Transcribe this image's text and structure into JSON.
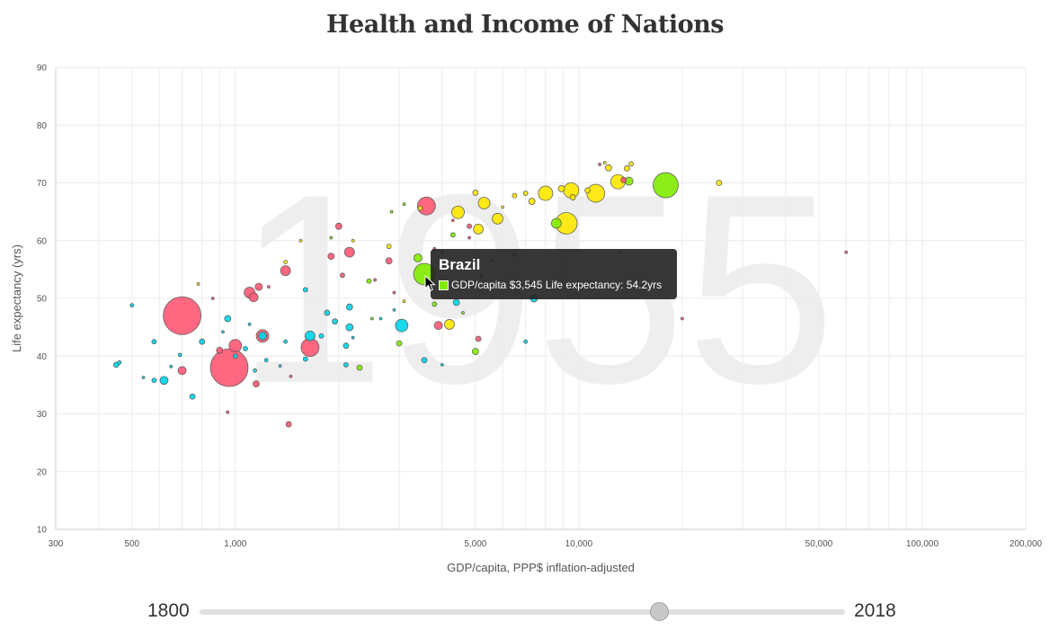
{
  "page": {
    "title": "Health and Income of Nations"
  },
  "chart_data": {
    "type": "scatter",
    "title": "Health and Income of Nations",
    "xlabel": "GDP/capita, PPP$ inflation-adjusted",
    "ylabel": "Life expectancy (yrs)",
    "xscale": "log",
    "xlim": [
      300,
      200000
    ],
    "ylim": [
      10,
      90
    ],
    "xticks": [
      300,
      400,
      500,
      600,
      700,
      800,
      900,
      1000,
      2000,
      3000,
      4000,
      5000,
      6000,
      7000,
      8000,
      9000,
      10000,
      20000,
      30000,
      40000,
      50000,
      60000,
      70000,
      80000,
      90000,
      100000,
      200000
    ],
    "xtick_labels": [
      {
        "value": 300,
        "label": "300"
      },
      {
        "value": 500,
        "label": "500"
      },
      {
        "value": 1000,
        "label": "1,000"
      },
      {
        "value": 5000,
        "label": "5,000"
      },
      {
        "value": 10000,
        "label": "10,000"
      },
      {
        "value": 50000,
        "label": "50,000"
      },
      {
        "value": 100000,
        "label": "100,000"
      },
      {
        "value": 200000,
        "label": "200,000"
      }
    ],
    "yticks": [
      10,
      20,
      30,
      40,
      50,
      60,
      70,
      80,
      90
    ],
    "grid": true,
    "year_watermark": "1955",
    "region_colors": {
      "africa": "#00d5e9",
      "asia": "#ff5872",
      "americas": "#7feb00",
      "europe": "#ffe700"
    },
    "points": [
      {
        "x": 700,
        "y": 47,
        "r": 21,
        "region": "asia"
      },
      {
        "x": 960,
        "y": 38,
        "r": 21,
        "region": "asia"
      },
      {
        "x": 3600,
        "y": 66,
        "r": 10,
        "region": "asia"
      },
      {
        "x": 1650,
        "y": 41.5,
        "r": 10,
        "region": "asia"
      },
      {
        "x": 1000,
        "y": 41.8,
        "r": 7,
        "region": "asia"
      },
      {
        "x": 1200,
        "y": 43.5,
        "r": 7,
        "region": "asia"
      },
      {
        "x": 1100,
        "y": 51,
        "r": 6,
        "region": "asia"
      },
      {
        "x": 1130,
        "y": 50.2,
        "r": 5,
        "region": "asia"
      },
      {
        "x": 1400,
        "y": 54.8,
        "r": 5.5,
        "region": "asia"
      },
      {
        "x": 2150,
        "y": 58,
        "r": 5.5,
        "region": "asia"
      },
      {
        "x": 700,
        "y": 37.5,
        "r": 4.5,
        "region": "asia"
      },
      {
        "x": 1170,
        "y": 52,
        "r": 4,
        "region": "asia"
      },
      {
        "x": 900,
        "y": 41,
        "r": 3.5,
        "region": "asia"
      },
      {
        "x": 1150,
        "y": 35.2,
        "r": 3.5,
        "region": "asia"
      },
      {
        "x": 2000,
        "y": 62.5,
        "r": 3.5,
        "region": "asia"
      },
      {
        "x": 3900,
        "y": 45.3,
        "r": 4.5,
        "region": "asia"
      },
      {
        "x": 1900,
        "y": 57.3,
        "r": 3.5,
        "region": "asia"
      },
      {
        "x": 2800,
        "y": 56.5,
        "r": 3.5,
        "region": "asia"
      },
      {
        "x": 2050,
        "y": 54,
        "r": 2.5,
        "region": "asia"
      },
      {
        "x": 1430,
        "y": 28.2,
        "r": 3,
        "region": "asia"
      },
      {
        "x": 5100,
        "y": 43,
        "r": 3,
        "region": "asia"
      },
      {
        "x": 13500,
        "y": 70.5,
        "r": 3,
        "region": "asia"
      },
      {
        "x": 4800,
        "y": 62.5,
        "r": 2.5,
        "region": "asia"
      },
      {
        "x": 3550,
        "y": 54.2,
        "r": 12,
        "region": "americas",
        "label": "Brazil",
        "tooltip_text": "GDP/capita $3,545 Life expectancy: 54.2yrs"
      },
      {
        "x": 17900,
        "y": 69.6,
        "r": 14,
        "region": "americas"
      },
      {
        "x": 8600,
        "y": 63,
        "r": 5.5,
        "region": "americas"
      },
      {
        "x": 3400,
        "y": 57,
        "r": 4.5,
        "region": "americas"
      },
      {
        "x": 14000,
        "y": 70.3,
        "r": 4.5,
        "region": "americas"
      },
      {
        "x": 5000,
        "y": 40.8,
        "r": 3.5,
        "region": "americas"
      },
      {
        "x": 2300,
        "y": 38,
        "r": 3,
        "region": "americas"
      },
      {
        "x": 3000,
        "y": 42.2,
        "r": 3,
        "region": "americas"
      },
      {
        "x": 3800,
        "y": 49,
        "r": 2.5,
        "region": "americas"
      },
      {
        "x": 2450,
        "y": 53,
        "r": 2.5,
        "region": "americas"
      },
      {
        "x": 4300,
        "y": 61,
        "r": 2.5,
        "region": "americas"
      },
      {
        "x": 9200,
        "y": 63,
        "r": 12,
        "region": "europe"
      },
      {
        "x": 11200,
        "y": 68.2,
        "r": 10,
        "region": "europe"
      },
      {
        "x": 9500,
        "y": 68.7,
        "r": 8.5,
        "region": "europe"
      },
      {
        "x": 13000,
        "y": 70.2,
        "r": 8,
        "region": "europe"
      },
      {
        "x": 8000,
        "y": 68.2,
        "r": 8,
        "region": "europe"
      },
      {
        "x": 4450,
        "y": 64.9,
        "r": 7,
        "region": "europe"
      },
      {
        "x": 5300,
        "y": 66.5,
        "r": 6.5,
        "region": "europe"
      },
      {
        "x": 5800,
        "y": 63.8,
        "r": 6,
        "region": "europe"
      },
      {
        "x": 5100,
        "y": 62,
        "r": 5.5,
        "region": "europe"
      },
      {
        "x": 4200,
        "y": 45.5,
        "r": 5.5,
        "region": "europe"
      },
      {
        "x": 12200,
        "y": 72.6,
        "r": 3.5,
        "region": "europe"
      },
      {
        "x": 13800,
        "y": 72.5,
        "r": 3,
        "region": "europe"
      },
      {
        "x": 14200,
        "y": 73.3,
        "r": 2.5,
        "region": "europe"
      },
      {
        "x": 7300,
        "y": 66.8,
        "r": 3.5,
        "region": "europe"
      },
      {
        "x": 8900,
        "y": 69,
        "r": 3.5,
        "region": "europe"
      },
      {
        "x": 9600,
        "y": 67.5,
        "r": 3,
        "region": "europe"
      },
      {
        "x": 10600,
        "y": 68.7,
        "r": 3,
        "region": "europe"
      },
      {
        "x": 5000,
        "y": 68.3,
        "r": 3,
        "region": "europe"
      },
      {
        "x": 6500,
        "y": 67.8,
        "r": 2.5,
        "region": "europe"
      },
      {
        "x": 7000,
        "y": 68.2,
        "r": 2.5,
        "region": "europe"
      },
      {
        "x": 25600,
        "y": 70,
        "r": 3,
        "region": "europe"
      },
      {
        "x": 2800,
        "y": 59,
        "r": 2.5,
        "region": "europe"
      },
      {
        "x": 3450,
        "y": 65.6,
        "r": 2.5,
        "region": "europe"
      },
      {
        "x": 1400,
        "y": 56.3,
        "r": 2,
        "region": "europe"
      },
      {
        "x": 3050,
        "y": 45.3,
        "r": 7,
        "region": "africa"
      },
      {
        "x": 1650,
        "y": 43.5,
        "r": 5.5,
        "region": "africa"
      },
      {
        "x": 620,
        "y": 35.8,
        "r": 4.5,
        "region": "africa"
      },
      {
        "x": 1200,
        "y": 43.5,
        "r": 4.5,
        "region": "africa"
      },
      {
        "x": 2150,
        "y": 45,
        "r": 4,
        "region": "africa"
      },
      {
        "x": 2150,
        "y": 48.5,
        "r": 3.5,
        "region": "africa"
      },
      {
        "x": 7400,
        "y": 50,
        "r": 4,
        "region": "africa"
      },
      {
        "x": 4400,
        "y": 49.3,
        "r": 3.5,
        "region": "africa"
      },
      {
        "x": 950,
        "y": 46.5,
        "r": 3.5,
        "region": "africa"
      },
      {
        "x": 1850,
        "y": 47.5,
        "r": 3,
        "region": "africa"
      },
      {
        "x": 1950,
        "y": 46,
        "r": 3,
        "region": "africa"
      },
      {
        "x": 2100,
        "y": 41.8,
        "r": 3,
        "region": "africa"
      },
      {
        "x": 3550,
        "y": 39.3,
        "r": 3,
        "region": "africa"
      },
      {
        "x": 450,
        "y": 38.5,
        "r": 3,
        "region": "africa"
      },
      {
        "x": 750,
        "y": 33,
        "r": 3,
        "region": "africa"
      },
      {
        "x": 800,
        "y": 42.5,
        "r": 3,
        "region": "africa"
      },
      {
        "x": 1600,
        "y": 51.5,
        "r": 2.5,
        "region": "africa"
      },
      {
        "x": 1780,
        "y": 43.5,
        "r": 2.5,
        "region": "africa"
      },
      {
        "x": 2100,
        "y": 38.5,
        "r": 2.5,
        "region": "africa"
      },
      {
        "x": 580,
        "y": 42.5,
        "r": 2.5,
        "region": "africa"
      },
      {
        "x": 580,
        "y": 35.8,
        "r": 2.5,
        "region": "africa"
      },
      {
        "x": 1000,
        "y": 40,
        "r": 2.5,
        "region": "africa"
      },
      {
        "x": 1070,
        "y": 41.3,
        "r": 2.5,
        "region": "africa"
      },
      {
        "x": 1600,
        "y": 39.5,
        "r": 2.5,
        "region": "africa"
      },
      {
        "x": 7000,
        "y": 42.5,
        "r": 2,
        "region": "africa"
      },
      {
        "x": 500,
        "y": 48.8,
        "r": 2,
        "region": "africa"
      },
      {
        "x": 460,
        "y": 38.9,
        "r": 2,
        "region": "africa"
      },
      {
        "x": 690,
        "y": 40.2,
        "r": 2,
        "region": "africa"
      },
      {
        "x": 1230,
        "y": 39.3,
        "r": 2,
        "region": "africa"
      },
      {
        "x": 1400,
        "y": 42.5,
        "r": 2,
        "region": "africa"
      },
      {
        "x": 1140,
        "y": 37.5,
        "r": 2,
        "region": "africa"
      },
      {
        "x": 1250,
        "y": 52,
        "r": 1.5,
        "region": "asia"
      },
      {
        "x": 2550,
        "y": 53.2,
        "r": 1.5,
        "region": "asia"
      },
      {
        "x": 3800,
        "y": 58.6,
        "r": 1.5,
        "region": "asia"
      },
      {
        "x": 4300,
        "y": 63.5,
        "r": 1.5,
        "region": "asia"
      },
      {
        "x": 4800,
        "y": 60.5,
        "r": 1.5,
        "region": "asia"
      },
      {
        "x": 2900,
        "y": 51,
        "r": 1.5,
        "region": "asia"
      },
      {
        "x": 860,
        "y": 50,
        "r": 1.5,
        "region": "asia"
      },
      {
        "x": 1450,
        "y": 36.5,
        "r": 1.5,
        "region": "asia"
      },
      {
        "x": 2850,
        "y": 65,
        "r": 1.5,
        "region": "americas"
      },
      {
        "x": 3100,
        "y": 66.3,
        "r": 1.5,
        "region": "americas"
      },
      {
        "x": 4600,
        "y": 47.5,
        "r": 1.5,
        "region": "americas"
      },
      {
        "x": 5200,
        "y": 53.8,
        "r": 1.5,
        "region": "americas"
      },
      {
        "x": 2500,
        "y": 46.5,
        "r": 1.5,
        "region": "americas"
      },
      {
        "x": 1900,
        "y": 60.5,
        "r": 1.5,
        "region": "americas"
      },
      {
        "x": 13200,
        "y": 58,
        "r": 1.5,
        "region": "americas"
      },
      {
        "x": 3100,
        "y": 49.5,
        "r": 1.5,
        "region": "europe"
      },
      {
        "x": 2200,
        "y": 60,
        "r": 1.5,
        "region": "europe"
      },
      {
        "x": 6000,
        "y": 65.8,
        "r": 1.5,
        "region": "europe"
      },
      {
        "x": 4000,
        "y": 58,
        "r": 1.5,
        "region": "europe"
      },
      {
        "x": 6500,
        "y": 57.5,
        "r": 1.5,
        "region": "europe"
      },
      {
        "x": 5600,
        "y": 56.5,
        "r": 1.5,
        "region": "europe"
      },
      {
        "x": 11900,
        "y": 73.5,
        "r": 1.5,
        "region": "europe"
      },
      {
        "x": 2900,
        "y": 48,
        "r": 1.5,
        "region": "africa"
      },
      {
        "x": 4000,
        "y": 38.5,
        "r": 1.5,
        "region": "africa"
      },
      {
        "x": 650,
        "y": 38.2,
        "r": 1.5,
        "region": "africa"
      },
      {
        "x": 920,
        "y": 44.2,
        "r": 1.5,
        "region": "africa"
      },
      {
        "x": 1100,
        "y": 45.5,
        "r": 1.5,
        "region": "africa"
      },
      {
        "x": 1350,
        "y": 38.3,
        "r": 1.5,
        "region": "africa"
      },
      {
        "x": 2200,
        "y": 43.2,
        "r": 1.5,
        "region": "africa"
      },
      {
        "x": 2650,
        "y": 46.5,
        "r": 1.5,
        "region": "africa"
      },
      {
        "x": 540,
        "y": 36.3,
        "r": 1.5,
        "region": "africa"
      },
      {
        "x": 60000,
        "y": 58,
        "r": 1.5,
        "region": "asia"
      },
      {
        "x": 20000,
        "y": 46.5,
        "r": 1.5,
        "region": "asia"
      },
      {
        "x": 950,
        "y": 30.3,
        "r": 1.5,
        "region": "asia"
      },
      {
        "x": 780,
        "y": 52.5,
        "r": 1.5,
        "region": "europe"
      },
      {
        "x": 1550,
        "y": 60,
        "r": 1.5,
        "region": "europe"
      },
      {
        "x": 11500,
        "y": 73.2,
        "r": 1.5,
        "region": "asia"
      }
    ]
  },
  "tooltip": {
    "title": "Brazil",
    "text": "GDP/capita $3,545 Life expectancy: 54.2yrs",
    "swatch_color": "#7feb00"
  },
  "slider": {
    "min_label": "1800",
    "max_label": "2018",
    "min": 1800,
    "max": 2018,
    "value": 1955
  }
}
